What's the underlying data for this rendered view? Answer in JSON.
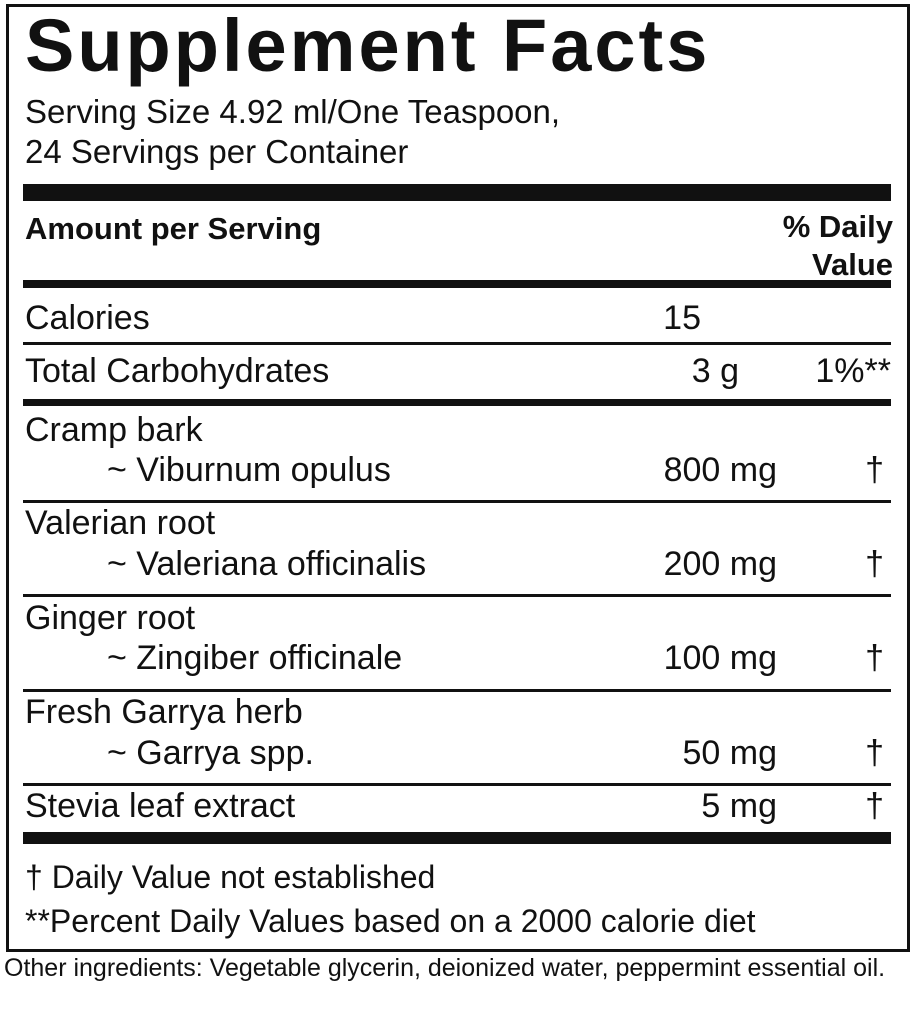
{
  "title": "Supplement Facts",
  "serving": {
    "line1": "Serving Size 4.92 ml/One Teaspoon,",
    "line2": "24 Servings per Container"
  },
  "header": {
    "amount": "Amount per Serving",
    "dv_line1": "% Daily",
    "dv_line2": "Value"
  },
  "rows": [
    {
      "name": "Calories",
      "amount": "15",
      "dv": ""
    },
    {
      "name": "Total Carbohydrates",
      "amount": "3 g",
      "dv": "1%**"
    },
    {
      "name": "Cramp bark",
      "latin": "~ Viburnum opulus",
      "amount": "800 mg",
      "dv": "†"
    },
    {
      "name": "Valerian root",
      "latin": "~ Valeriana officinalis",
      "amount": "200 mg",
      "dv": "†"
    },
    {
      "name": "Ginger root",
      "latin": "~ Zingiber officinale",
      "amount": "100 mg",
      "dv": "†"
    },
    {
      "name": "Fresh Garrya herb",
      "latin": "~ Garrya spp.",
      "amount": "50 mg",
      "dv": "†"
    },
    {
      "name": "Stevia leaf extract",
      "amount": "5 mg",
      "dv": "†"
    }
  ],
  "footnotes": {
    "dagger": "†  Daily Value not established",
    "percent": "**Percent Daily Values based on a 2000 calorie diet"
  },
  "other_ingredients": "Other ingredients: Vegetable glycerin, deionized water, peppermint essential oil."
}
